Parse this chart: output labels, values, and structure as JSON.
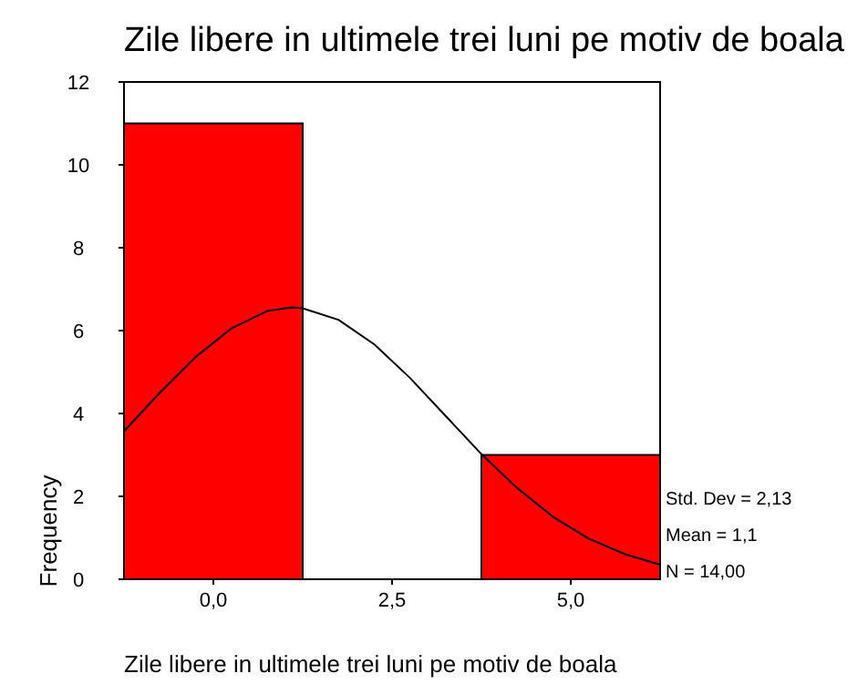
{
  "chart_data": {
    "type": "histogram",
    "title": "Zile libere in ultimele trei luni pe motiv de boala",
    "xlabel": "Zile libere in ultimele trei luni pe motiv de boala",
    "ylabel": "Frequency",
    "bins": [
      -1.25,
      1.25,
      3.75,
      6.25
    ],
    "values": [
      11,
      0,
      3
    ],
    "color": "#ff0000",
    "series": [
      {
        "type": "line",
        "color": "#000000",
        "x": [
          -1.25,
          -0.75,
          -0.25,
          0.25,
          0.75,
          1.1,
          1.25,
          1.75,
          2.25,
          2.75,
          3.25,
          3.75,
          4.25,
          4.75,
          5.25,
          5.75,
          6.25
        ],
        "values": [
          3.57,
          4.5,
          5.36,
          6.05,
          6.47,
          6.56,
          6.54,
          6.26,
          5.67,
          4.86,
          3.94,
          3.02,
          2.2,
          1.51,
          0.98,
          0.61,
          0.35
        ]
      }
    ],
    "xlim": [
      -1.25,
      6.25
    ],
    "xticks": [
      {
        "value": 0,
        "label": "0,0"
      },
      {
        "value": 2.5,
        "label": "2,5"
      },
      {
        "value": 5,
        "label": "5,0"
      }
    ],
    "ylim": [
      0,
      12
    ],
    "yticks": [
      0,
      2,
      4,
      6,
      8,
      10,
      12
    ],
    "annotations": [
      "Std. Dev = 2,13",
      "Mean = 1,1",
      "N = 14,00"
    ]
  }
}
